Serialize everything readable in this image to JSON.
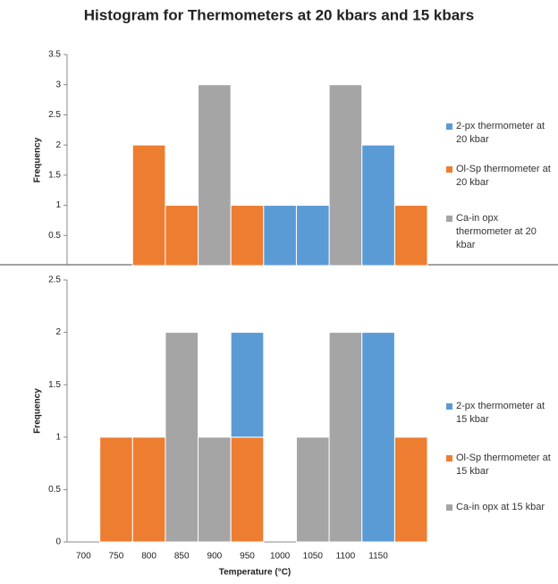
{
  "chart_data": [
    {
      "type": "bar",
      "stacked": true,
      "title": "Histogram for Thermometers at 20 kbars and 15 kbars",
      "y_label": "Frequency",
      "ylim": [
        0,
        3.5
      ],
      "yticks": [
        0.5,
        1,
        1.5,
        2,
        2.5,
        3,
        3.5
      ],
      "series": [
        {
          "name": "2-px thermometer at 20 kbar",
          "color": "#5b9bd5",
          "values": [
            0,
            0,
            0,
            0,
            0,
            0,
            1,
            1,
            0,
            2,
            0
          ]
        },
        {
          "name": "Ol-Sp thermometer at 20 kbar",
          "color": "#ed7d31",
          "values": [
            0,
            0,
            2,
            1,
            0,
            1,
            0,
            0,
            0,
            0,
            1
          ]
        },
        {
          "name": "Ca-in opx thermometer at 20 kbar",
          "color": "#a5a5a5",
          "values": [
            0,
            0,
            0,
            0,
            3,
            0,
            0,
            0,
            3,
            0,
            0
          ]
        }
      ]
    },
    {
      "type": "bar",
      "stacked": true,
      "y_label": "Frequency",
      "x_label": "Temperature (°C)",
      "categories": [
        "700",
        "750",
        "800",
        "850",
        "900",
        "950",
        "1000",
        "1050",
        "1100",
        "1150",
        null
      ],
      "ylim": [
        0,
        2.5
      ],
      "yticks": [
        0,
        0.5,
        1,
        1.5,
        2,
        2.5
      ],
      "series": [
        {
          "name": "2-px thermometer at 15 kbar",
          "color": "#5b9bd5",
          "values": [
            0,
            0,
            0,
            0,
            0,
            1,
            0,
            0,
            0,
            2,
            0
          ]
        },
        {
          "name": "Ol-Sp thermometer at 15 kbar",
          "color": "#ed7d31",
          "values": [
            0,
            1,
            1,
            0,
            0,
            1,
            0,
            0,
            0,
            0,
            1
          ]
        },
        {
          "name": "Ca-in opx at 15 kbar",
          "color": "#a5a5a5",
          "values": [
            0,
            0,
            0,
            2,
            1,
            0,
            0,
            1,
            2,
            0,
            0
          ]
        }
      ]
    }
  ]
}
